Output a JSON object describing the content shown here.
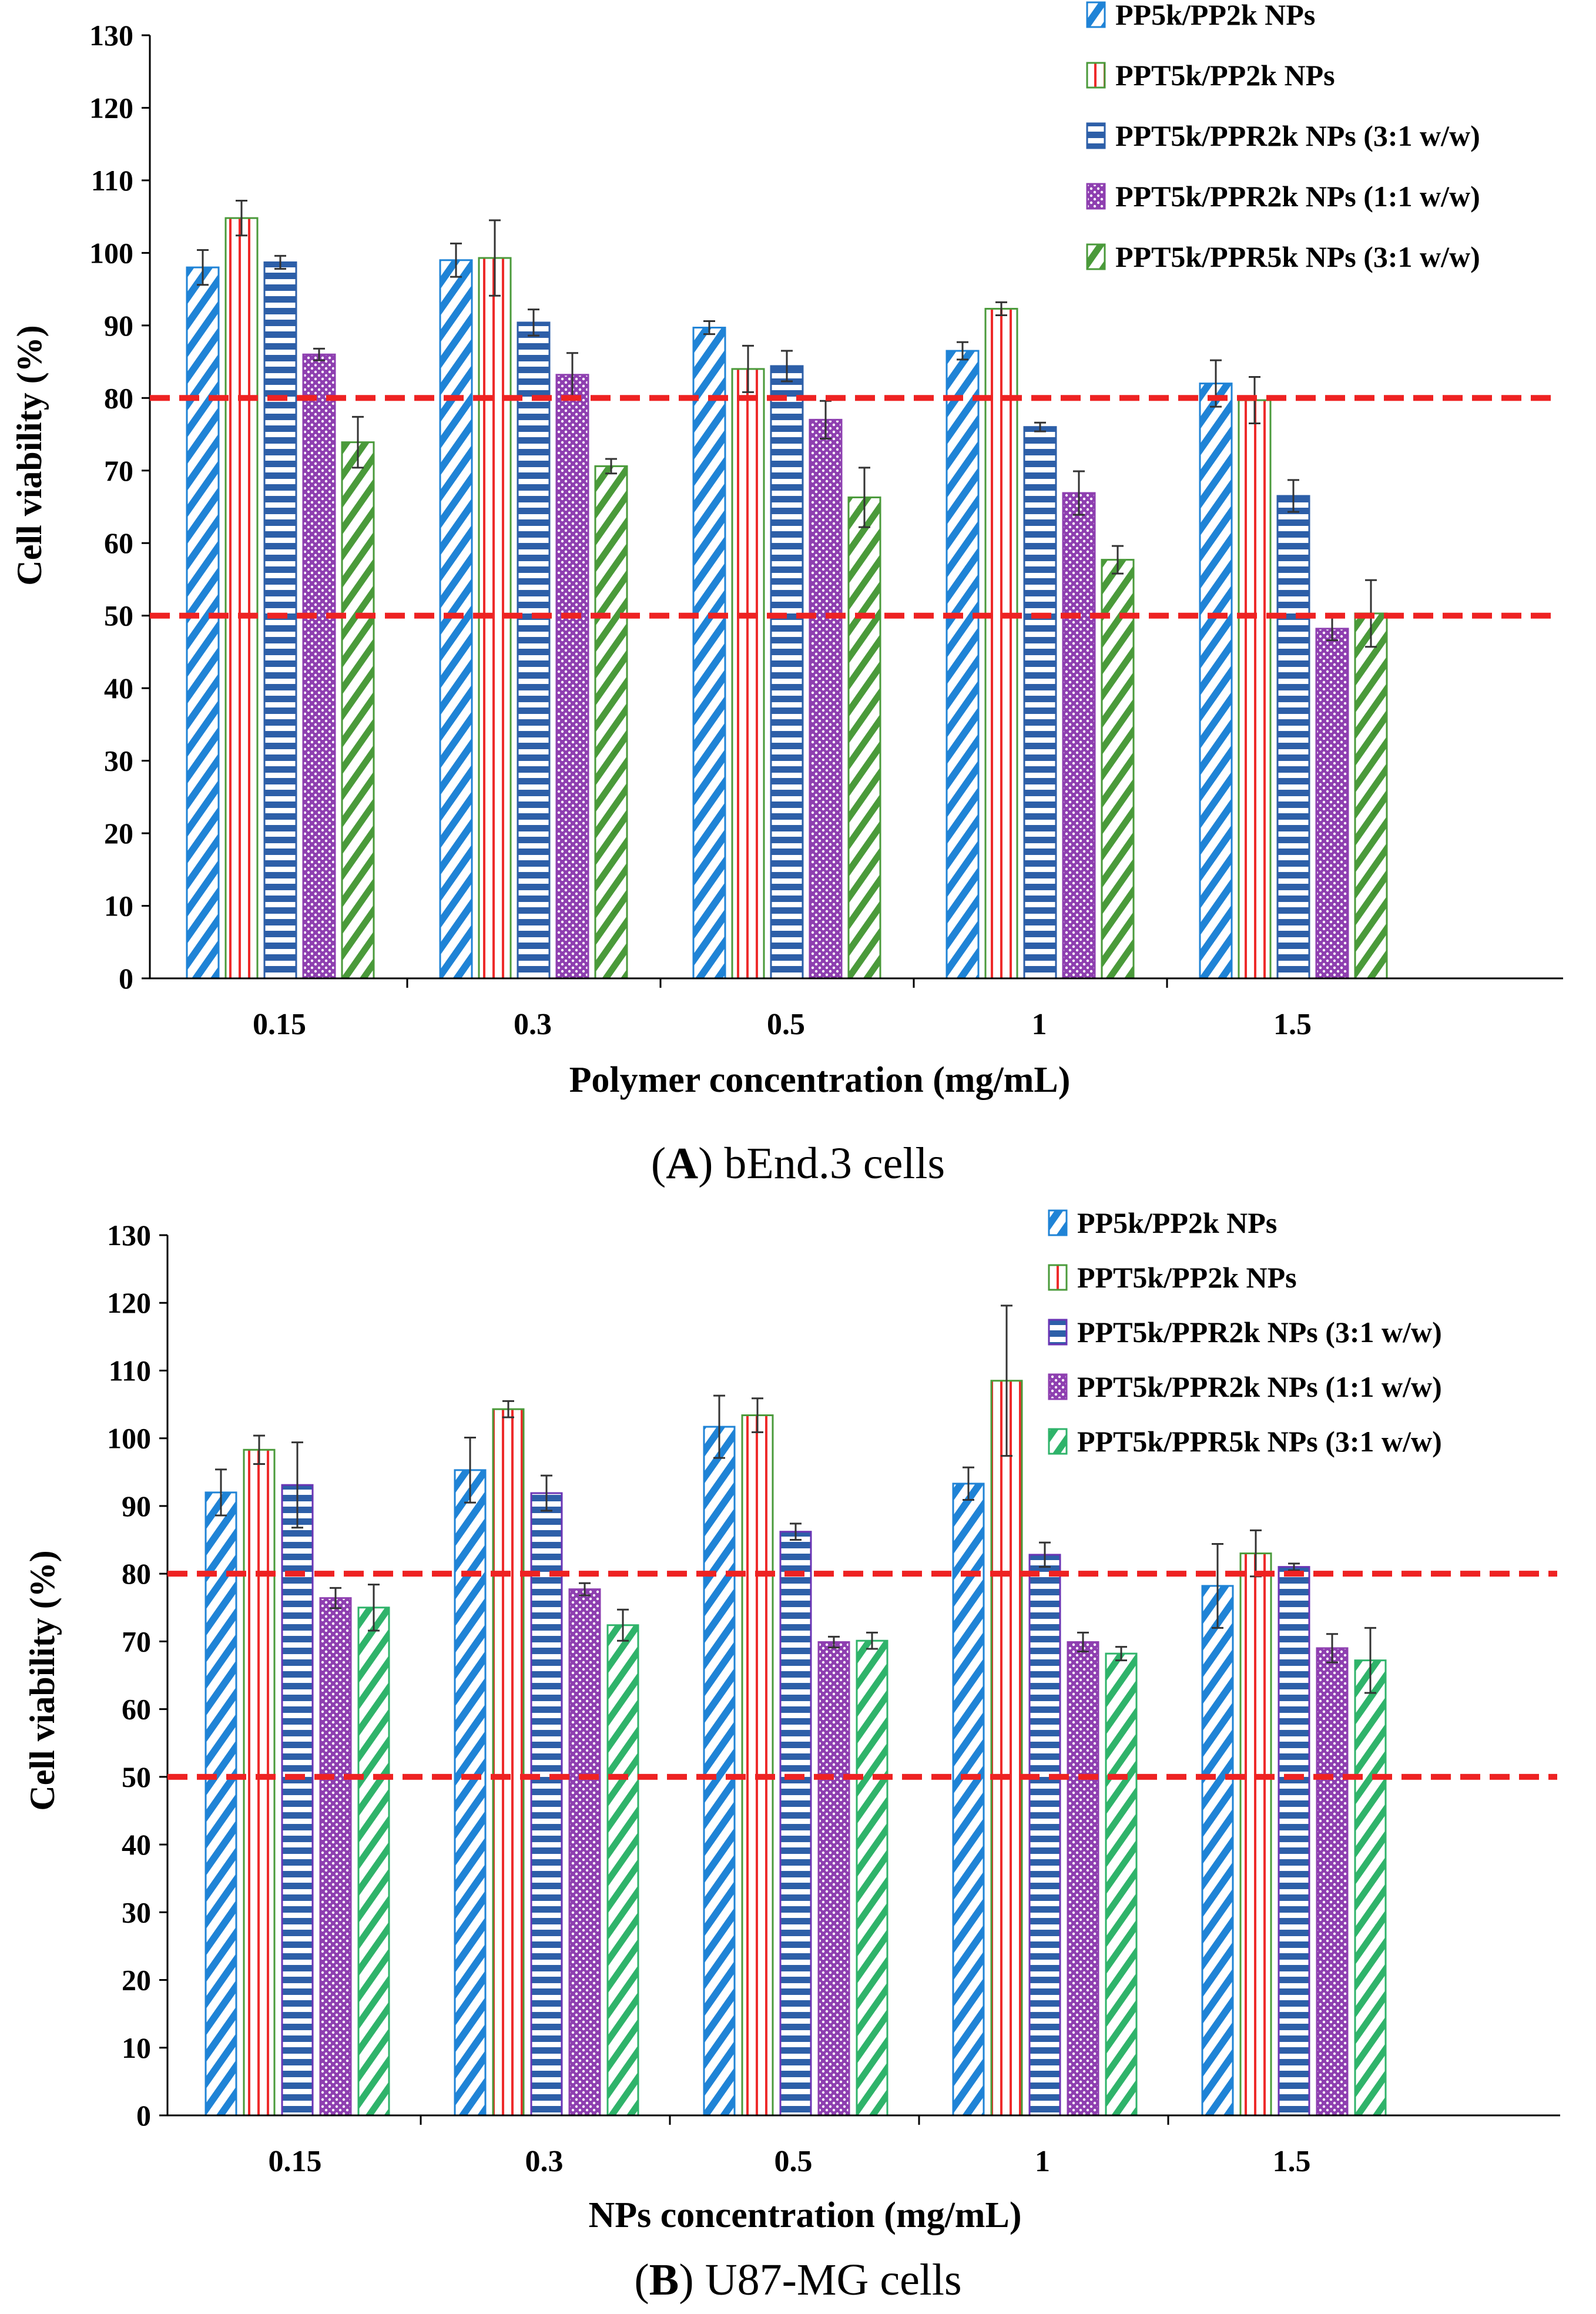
{
  "colors": {
    "blue": "#1f83d6",
    "navy": "#2d5fa8",
    "red": "#ee2b2b",
    "green": "#4a9a3a",
    "green_b": "#2fb36a",
    "purple": "#8e3fb0",
    "purple_b": "#6a35b5",
    "threshold": "#ee2222",
    "axis": "#000000"
  },
  "chart_data": [
    {
      "type": "bar",
      "panel_label": "A",
      "caption": "bEnd.3 cells",
      "ylabel": "Cell viability (%)",
      "xlabel": "Polymer concentration (mg/mL)",
      "ylim": [
        0,
        130
      ],
      "ytick_step": 10,
      "categories": [
        "0.15",
        "0.3",
        "0.5",
        "1",
        "1.5"
      ],
      "thresholds": [
        80,
        50
      ],
      "series": [
        {
          "name": "PP5k/PP2k NPs",
          "pattern": "diag",
          "values": [
            98,
            99,
            89.7,
            86.5,
            82
          ],
          "errors": [
            2.4,
            2.3,
            0.9,
            1.2,
            3.2
          ]
        },
        {
          "name": "PPT5k/PP2k NPs",
          "pattern": "vert",
          "values": [
            104.8,
            99.3,
            84,
            92.3,
            79.7
          ],
          "errors": [
            2.4,
            5.2,
            3.2,
            0.9,
            3.2
          ]
        },
        {
          "name": "PPT5k/PPR2k NPs (3:1 w/w)",
          "pattern": "horiz",
          "values": [
            98.7,
            90.4,
            84.4,
            76,
            66.5
          ],
          "errors": [
            0.9,
            1.8,
            2.1,
            0.6,
            2.2
          ]
        },
        {
          "name": "PPT5k/PPR2k NPs (1:1 w/w)",
          "pattern": "dots",
          "values": [
            86,
            83.2,
            77,
            66.9,
            48.2
          ],
          "errors": [
            0.8,
            3,
            2.6,
            3,
            1.6
          ]
        },
        {
          "name": "PPT5k/PPR5k NPs (3:1 w/w)",
          "pattern": "diag2",
          "values": [
            73.9,
            70.6,
            66.3,
            57.7,
            50.3
          ],
          "errors": [
            3.5,
            1,
            4.1,
            1.9,
            4.6
          ]
        }
      ]
    },
    {
      "type": "bar",
      "panel_label": "B",
      "caption": "U87-MG cells",
      "ylabel": "Cell viability (%)",
      "xlabel": "NPs concentration (mg/mL)",
      "ylim": [
        0,
        130
      ],
      "ytick_step": 10,
      "categories": [
        "0.15",
        "0.3",
        "0.5",
        "1",
        "1.5"
      ],
      "thresholds": [
        80,
        50
      ],
      "series": [
        {
          "name": "PP5k/PP2k NPs",
          "pattern": "diag",
          "values": [
            92,
            95.3,
            101.7,
            93.3,
            78.2
          ],
          "errors": [
            3.4,
            4.8,
            4.6,
            2.4,
            6.2
          ]
        },
        {
          "name": "PPT5k/PP2k NPs",
          "pattern": "vert",
          "values": [
            98.3,
            104.3,
            103.4,
            108.5,
            83
          ],
          "errors": [
            2.1,
            1.2,
            2.5,
            11.1,
            3.4
          ]
        },
        {
          "name": "PPT5k/PPR2k NPs (3:1 w/w)",
          "pattern": "horiz",
          "values": [
            93.1,
            91.9,
            86.2,
            82.8,
            81
          ],
          "errors": [
            6.3,
            2.6,
            1.2,
            1.8,
            0.5
          ]
        },
        {
          "name": "PPT5k/PPR2k NPs (1:1 w/w)",
          "pattern": "dots",
          "values": [
            76.4,
            77.7,
            69.9,
            69.9,
            69
          ],
          "errors": [
            1.5,
            0.9,
            0.8,
            1.4,
            2.1
          ]
        },
        {
          "name": "PPT5k/PPR5k NPs (3:1 w/w)",
          "pattern": "diag2",
          "values": [
            75,
            72.4,
            70.1,
            68.2,
            67.2
          ],
          "errors": [
            3.4,
            2.3,
            1.2,
            1,
            4.8
          ]
        }
      ]
    }
  ]
}
